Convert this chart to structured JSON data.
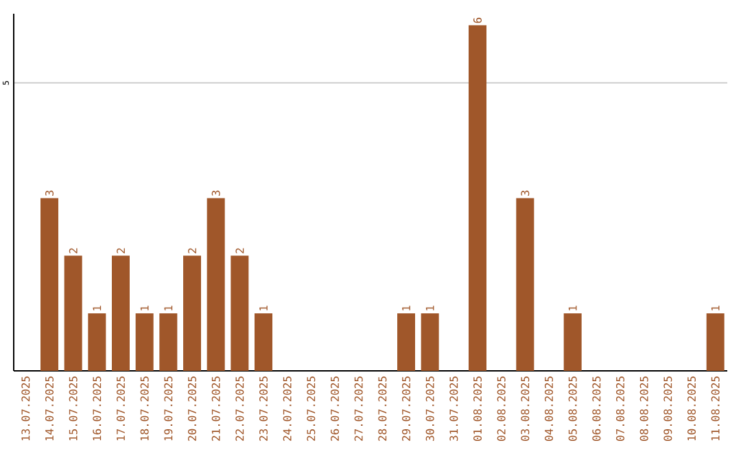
{
  "chart_data": {
    "type": "bar",
    "categories": [
      "13.07.2025",
      "14.07.2025",
      "15.07.2025",
      "16.07.2025",
      "17.07.2025",
      "18.07.2025",
      "19.07.2025",
      "20.07.2025",
      "21.07.2025",
      "22.07.2025",
      "23.07.2025",
      "24.07.2025",
      "25.07.2025",
      "26.07.2025",
      "27.07.2025",
      "28.07.2025",
      "29.07.2025",
      "30.07.2025",
      "31.07.2025",
      "01.08.2025",
      "02.08.2025",
      "03.08.2025",
      "04.08.2025",
      "05.08.2025",
      "06.08.2025",
      "07.08.2025",
      "08.08.2025",
      "09.08.2025",
      "10.08.2025",
      "11.08.2025"
    ],
    "values": [
      0,
      3,
      2,
      1,
      2,
      1,
      1,
      2,
      3,
      2,
      1,
      0,
      0,
      0,
      0,
      0,
      1,
      1,
      0,
      6,
      0,
      3,
      0,
      1,
      0,
      0,
      0,
      0,
      0,
      1
    ],
    "value_labels": [
      null,
      "3",
      "2",
      "1",
      "2",
      "1",
      "1",
      "2",
      "3",
      "2",
      "1",
      null,
      null,
      null,
      null,
      null,
      "1",
      "1",
      null,
      "6",
      null,
      "3",
      null,
      "1",
      null,
      null,
      null,
      null,
      null,
      "1"
    ],
    "color": "#a0572a",
    "ylim": [
      0,
      6.2
    ],
    "yticks": [
      5
    ],
    "grid": "y"
  }
}
